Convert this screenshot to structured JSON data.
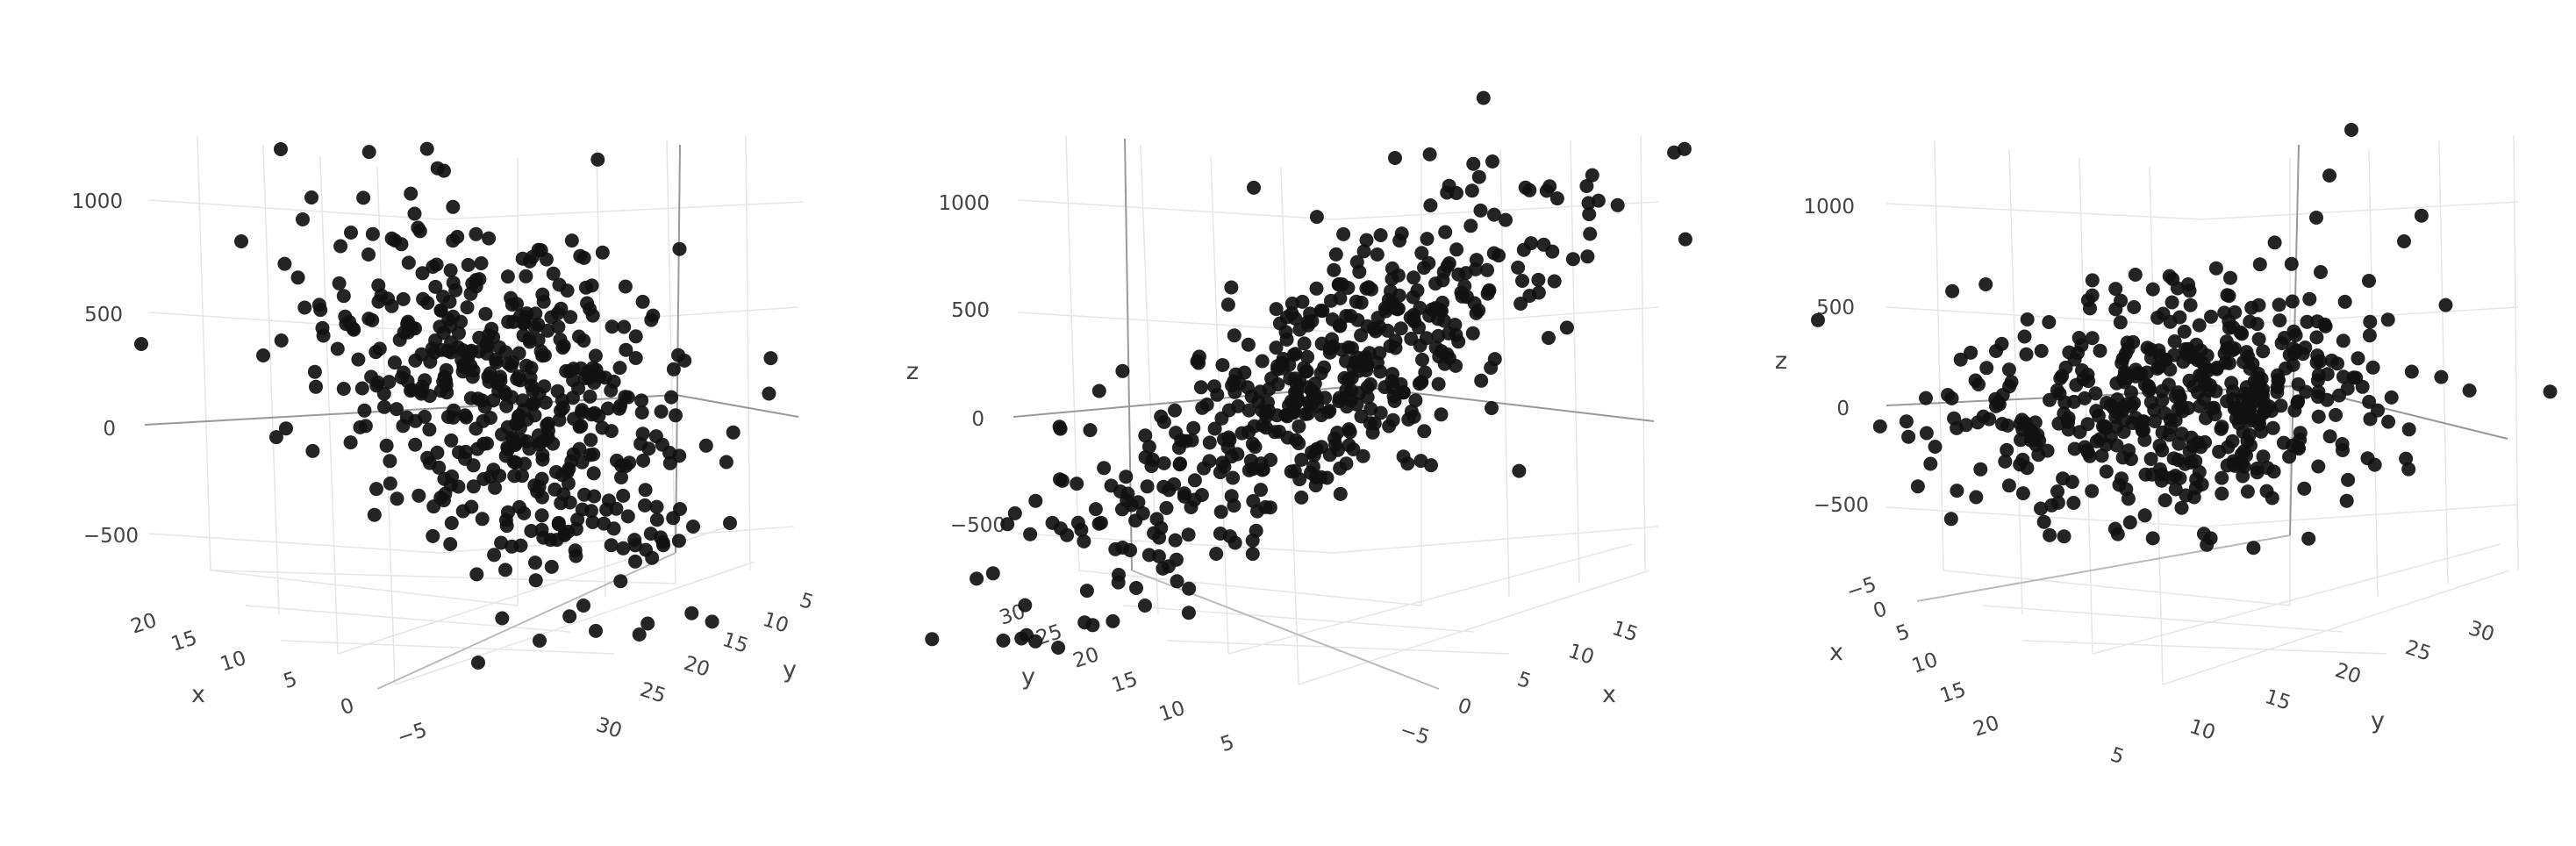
{
  "chart_data": [
    {
      "type": "scatter",
      "view": "x-left, y-right",
      "axes": {
        "x": {
          "label": "x",
          "ticks": [
            "20",
            "15",
            "10",
            "5",
            "0",
            "−5"
          ]
        },
        "y": {
          "label": "y",
          "ticks": [
            "5",
            "10",
            "15",
            "20",
            "25",
            "30"
          ]
        },
        "z": {
          "label": "",
          "ticks": [
            "1000",
            "500",
            "0",
            "−500"
          ]
        }
      },
      "marker_color": "#111111",
      "grid": true,
      "n_points": 500
    },
    {
      "type": "scatter",
      "view": "y-left, x-right",
      "axes": {
        "y": {
          "label": "y",
          "ticks": [
            "30",
            "25",
            "20",
            "15",
            "10",
            "5"
          ]
        },
        "x": {
          "label": "x",
          "ticks": [
            "−5",
            "0",
            "5",
            "10",
            "15"
          ]
        },
        "z": {
          "label": "z",
          "ticks": [
            "1000",
            "500",
            "0",
            "−500"
          ]
        }
      },
      "marker_color": "#111111",
      "grid": true,
      "n_points": 500
    },
    {
      "type": "scatter",
      "view": "x-left, y-right",
      "axes": {
        "x": {
          "label": "x",
          "ticks": [
            "−5",
            "0",
            "5",
            "10",
            "15",
            "20"
          ]
        },
        "y": {
          "label": "y",
          "ticks": [
            "5",
            "10",
            "15",
            "20",
            "25",
            "30"
          ]
        },
        "z": {
          "label": "z",
          "ticks": [
            "1000",
            "500",
            "0",
            "−500"
          ]
        }
      },
      "marker_color": "#111111",
      "grid": true,
      "n_points": 500
    }
  ]
}
